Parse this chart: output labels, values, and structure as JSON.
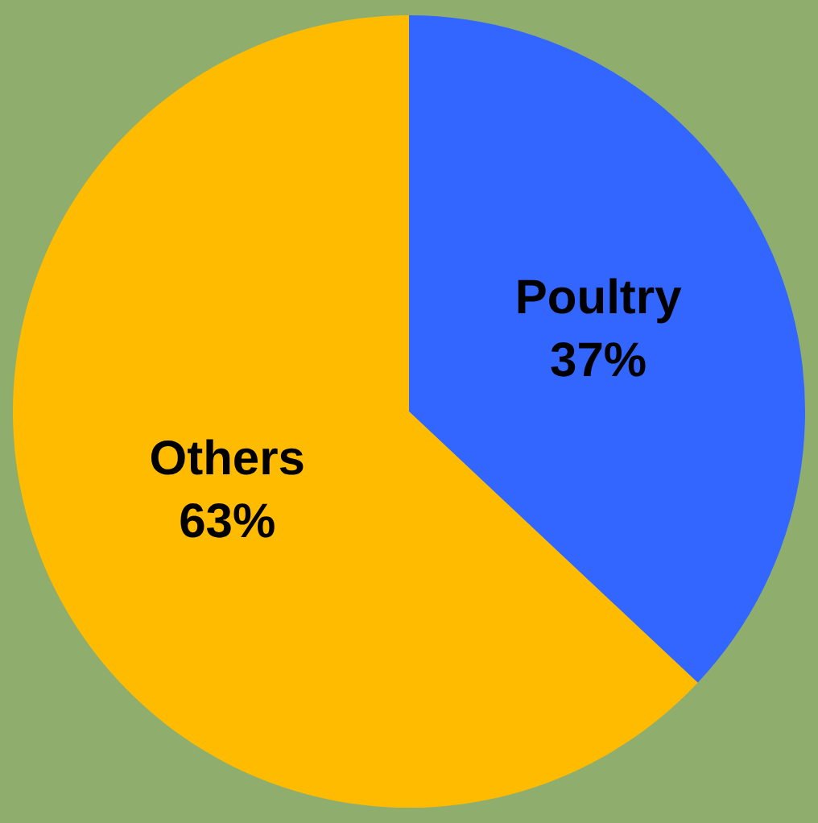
{
  "chart_data": {
    "type": "pie",
    "categories": [
      "Poultry",
      "Others"
    ],
    "values": [
      37,
      63
    ],
    "value_labels": [
      "37%",
      "63%"
    ],
    "colors": [
      "#3366ff",
      "#ffbb00"
    ],
    "legend": false
  }
}
